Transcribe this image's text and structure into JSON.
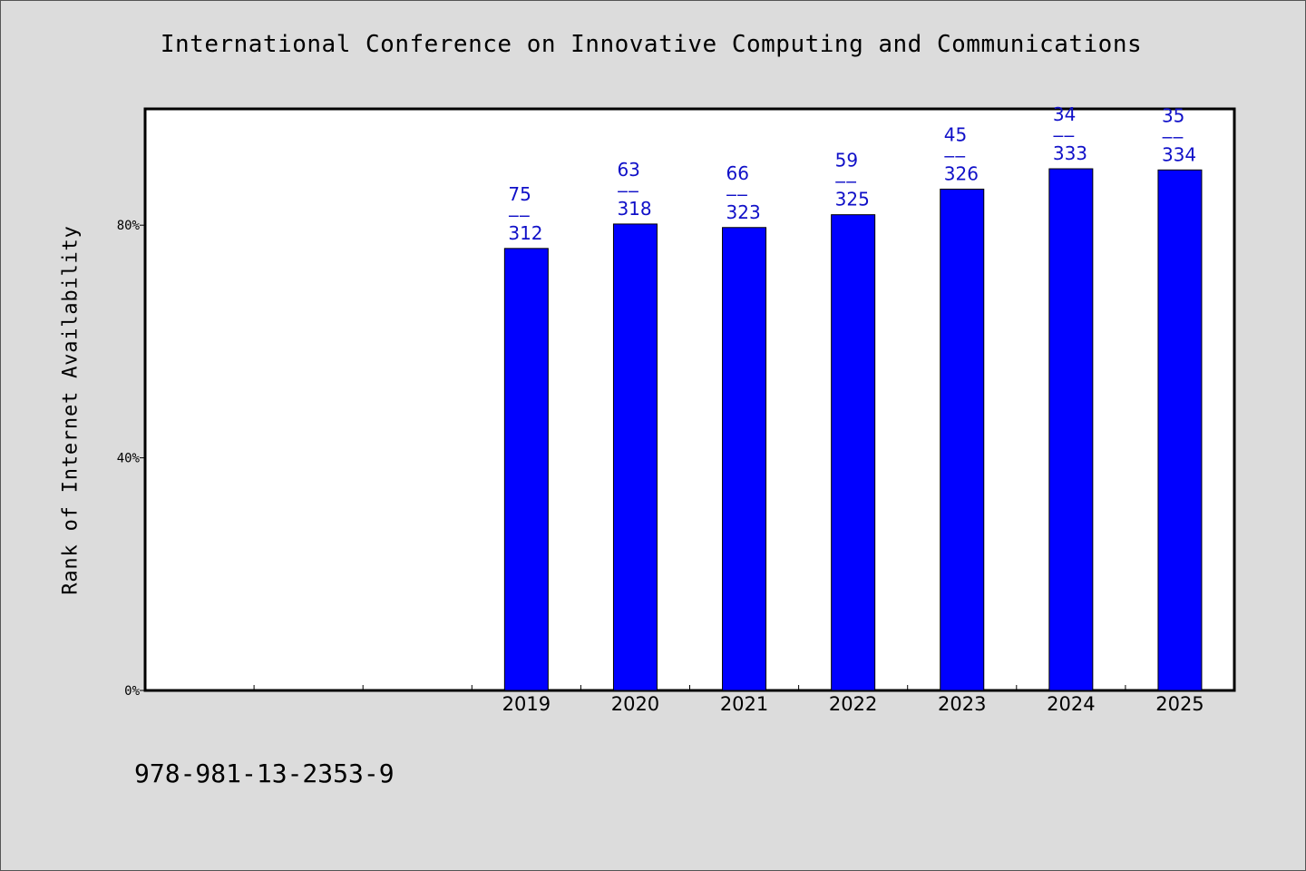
{
  "header": {
    "title": "International Conference on Innovative Computing and Communications"
  },
  "footer": {
    "isbn": "978-981-13-2353-9"
  },
  "colors": {
    "background": "#dcdcdc",
    "plot_background": "#ffffff",
    "bar_fill": "#0000ff",
    "data_label": "#1010c8"
  },
  "chart_data": {
    "type": "bar",
    "title": "International Conference on Innovative Computing and Communications",
    "xlabel": "",
    "ylabel": "Rank of Internet Availability",
    "categories": [
      "",
      "",
      "",
      "2019",
      "2020",
      "2021",
      "2022",
      "2023",
      "2024",
      "2025"
    ],
    "values": [
      null,
      null,
      null,
      76.0,
      80.2,
      79.6,
      81.8,
      86.2,
      89.7,
      89.5
    ],
    "labels": [
      null,
      null,
      null,
      {
        "rank": "75",
        "sep": "——",
        "total": "312"
      },
      {
        "rank": "63",
        "sep": "——",
        "total": "318"
      },
      {
        "rank": "66",
        "sep": "——",
        "total": "323"
      },
      {
        "rank": "59",
        "sep": "——",
        "total": "325"
      },
      {
        "rank": "45",
        "sep": "——",
        "total": "326"
      },
      {
        "rank": "34",
        "sep": "——",
        "total": "333"
      },
      {
        "rank": "35",
        "sep": "——",
        "total": "334"
      }
    ],
    "yticks": [
      {
        "value": 0,
        "label": "0%"
      },
      {
        "value": 40,
        "label": "40%"
      },
      {
        "value": 80,
        "label": "80%"
      }
    ],
    "ylim": [
      0,
      100
    ],
    "grid": false,
    "legend": "none"
  }
}
